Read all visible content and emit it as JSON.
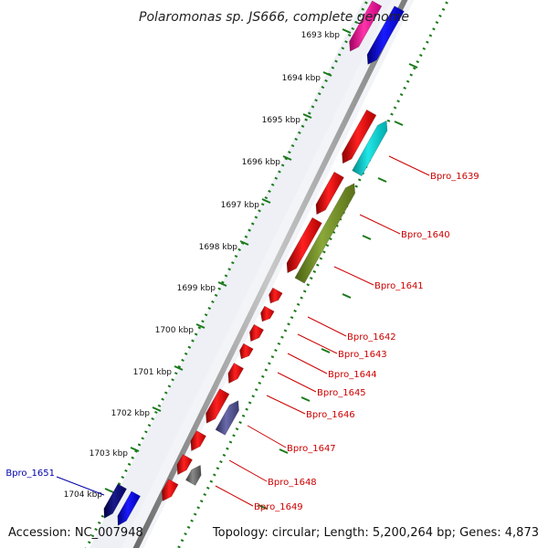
{
  "title": "Polaromonas sp. JS666, complete genome",
  "footer": {
    "accession": "Accession: NC_007948",
    "summary": "Topology: circular; Length: 5,200,264 bp; Genes: 4,873"
  },
  "colors": {
    "backbone": "#8a8a8a",
    "ruler": "#1a7a1a",
    "label_red": "#cc0000",
    "label_blue": "#0000aa"
  },
  "scale_ticks": [
    {
      "label": "1693 kbp",
      "kbp": 1693
    },
    {
      "label": "1694 kbp",
      "kbp": 1694
    },
    {
      "label": "1695 kbp",
      "kbp": 1695
    },
    {
      "label": "1696 kbp",
      "kbp": 1696
    },
    {
      "label": "1697 kbp",
      "kbp": 1697
    },
    {
      "label": "1698 kbp",
      "kbp": 1698
    },
    {
      "label": "1699 kbp",
      "kbp": 1699
    },
    {
      "label": "1700 kbp",
      "kbp": 1700
    },
    {
      "label": "1701 kbp",
      "kbp": 1701
    },
    {
      "label": "1702 kbp",
      "kbp": 1702
    },
    {
      "label": "1703 kbp",
      "kbp": 1703
    },
    {
      "label": "1704 kbp",
      "kbp": 1704
    }
  ],
  "gene_labels": [
    {
      "text": "Bpro_1639",
      "color": "#cc0000"
    },
    {
      "text": "Bpro_1640",
      "color": "#cc0000"
    },
    {
      "text": "Bpro_1641",
      "color": "#cc0000"
    },
    {
      "text": "Bpro_1642",
      "color": "#cc0000"
    },
    {
      "text": "Bpro_1643",
      "color": "#cc0000"
    },
    {
      "text": "Bpro_1644",
      "color": "#cc0000"
    },
    {
      "text": "Bpro_1645",
      "color": "#cc0000"
    },
    {
      "text": "Bpro_1646",
      "color": "#cc0000"
    },
    {
      "text": "Bpro_1647",
      "color": "#cc0000"
    },
    {
      "text": "Bpro_1648",
      "color": "#cc0000"
    },
    {
      "text": "Bpro_1649",
      "color": "#cc0000"
    },
    {
      "text": "Bpro_1651",
      "color": "#0000aa"
    }
  ]
}
